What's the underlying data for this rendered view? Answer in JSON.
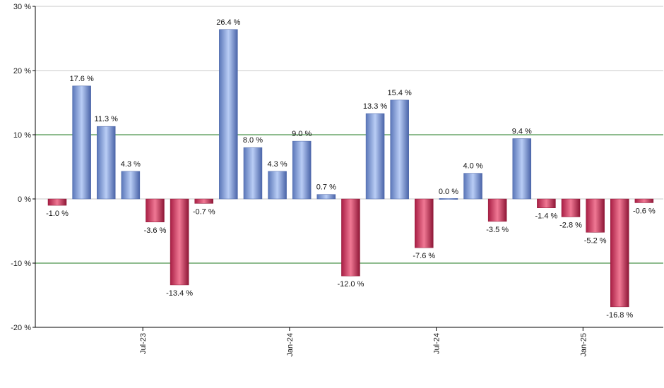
{
  "chart_data": {
    "type": "bar",
    "title": "",
    "xlabel": "",
    "ylabel": "",
    "ylim": [
      -20,
      30
    ],
    "yticks": [
      30,
      20,
      10,
      0,
      -10,
      -20
    ],
    "ytick_labels": [
      "30 %",
      "20 %",
      "10 %",
      "0 %",
      "-10 %",
      "-20 %"
    ],
    "xtick_labels": [
      "Jul-23",
      "Jan-24",
      "Jul-24",
      "Jan-25"
    ],
    "grid": true,
    "legend": "none",
    "colors": {
      "positive": "#7d9fe0",
      "negative": "#cc2a52",
      "grid_light": "#c8c8c8",
      "grid_major": "#1f7a1f",
      "axis": "#000000"
    },
    "series": [
      {
        "values": [
          -1.0,
          17.6,
          11.3,
          4.3,
          -3.6,
          -13.4,
          -0.7,
          26.4,
          8.0,
          4.3,
          9.0,
          0.7,
          -12.0,
          13.3,
          15.4,
          -7.6,
          0.0,
          4.0,
          -3.5,
          9.4,
          -1.4,
          -2.8,
          -5.2,
          -16.8,
          -0.6
        ],
        "labels": [
          "-1.0 %",
          "17.6 %",
          "11.3 %",
          "4.3 %",
          "-3.6 %",
          "-13.4 %",
          "-0.7 %",
          "26.4 %",
          "8.0 %",
          "4.3 %",
          "9.0 %",
          "0.7 %",
          "-12.0 %",
          "13.3 %",
          "15.4 %",
          "-7.6 %",
          "0.0 %",
          "4.0 %",
          "-3.5 %",
          "9.4 %",
          "-1.4 %",
          "-2.8 %",
          "-5.2 %",
          "-16.8 %",
          "-0.6 %"
        ]
      }
    ]
  }
}
